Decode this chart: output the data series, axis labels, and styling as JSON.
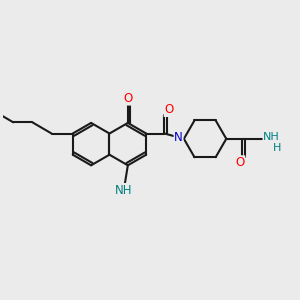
{
  "bg_color": "#ebebeb",
  "bond_color": "#1a1a1a",
  "bond_width": 1.5,
  "atom_colors": {
    "O": "#ff0000",
    "N": "#0000cc",
    "NH": "#008080"
  },
  "font_size": 8.5
}
